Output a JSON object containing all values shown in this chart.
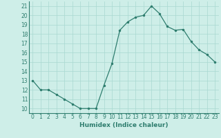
{
  "x": [
    0,
    1,
    2,
    3,
    4,
    5,
    6,
    7,
    8,
    9,
    10,
    11,
    12,
    13,
    14,
    15,
    16,
    17,
    18,
    19,
    20,
    21,
    22,
    23
  ],
  "y": [
    13,
    12,
    12,
    11.5,
    11,
    10.5,
    10,
    10,
    10,
    12.5,
    14.8,
    18.4,
    19.3,
    19.8,
    20,
    21,
    20.2,
    18.8,
    18.4,
    18.5,
    17.2,
    16.3,
    15.8,
    15
  ],
  "xlabel": "Humidex (Indice chaleur)",
  "xlim": [
    -0.5,
    23.5
  ],
  "ylim": [
    9.5,
    21.5
  ],
  "yticks": [
    10,
    11,
    12,
    13,
    14,
    15,
    16,
    17,
    18,
    19,
    20,
    21
  ],
  "xticks": [
    0,
    1,
    2,
    3,
    4,
    5,
    6,
    7,
    8,
    9,
    10,
    11,
    12,
    13,
    14,
    15,
    16,
    17,
    18,
    19,
    20,
    21,
    22,
    23
  ],
  "line_color": "#2e7d6e",
  "marker_color": "#2e7d6e",
  "bg_color": "#ceeee8",
  "grid_color": "#a8d8d0",
  "spine_color": "#2e7d6e",
  "tick_color": "#2e7d6e",
  "label_fontsize": 6.5,
  "tick_fontsize": 5.5
}
